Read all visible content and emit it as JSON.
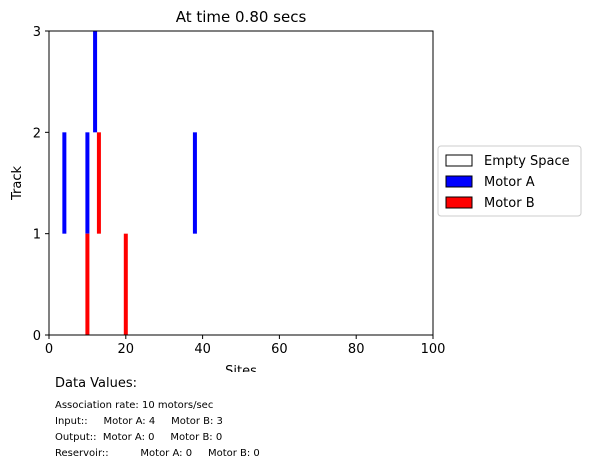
{
  "chart_data": {
    "type": "bar",
    "title": "At time 0.80 secs",
    "xlabel": "Sites",
    "ylabel": "Track",
    "xlim": [
      0,
      100
    ],
    "ylim": [
      0,
      3
    ],
    "x_ticks": [
      0,
      20,
      40,
      60,
      80,
      100
    ],
    "y_ticks": [
      0,
      1,
      2,
      3
    ],
    "grid": false,
    "legend_position": "outside-right",
    "legend": [
      {
        "label": "Empty Space",
        "color": "#ffffff"
      },
      {
        "label": "Motor A",
        "color": "#0000ff"
      },
      {
        "label": "Motor B",
        "color": "#ff0000"
      }
    ],
    "series": [
      {
        "name": "Motor A",
        "color": "#0000ff",
        "segments": [
          {
            "site": 4,
            "track_from": 1,
            "track_to": 2
          },
          {
            "site": 10,
            "track_from": 1,
            "track_to": 2
          },
          {
            "site": 12,
            "track_from": 2,
            "track_to": 3
          },
          {
            "site": 38,
            "track_from": 1,
            "track_to": 2
          }
        ]
      },
      {
        "name": "Motor B",
        "color": "#ff0000",
        "segments": [
          {
            "site": 10,
            "track_from": 0,
            "track_to": 1
          },
          {
            "site": 13,
            "track_from": 1,
            "track_to": 2
          },
          {
            "site": 20,
            "track_from": 0,
            "track_to": 1
          }
        ]
      }
    ]
  },
  "info": {
    "title": "Data Values:",
    "lines": [
      "Association rate: 10 motors/sec",
      "Input::     Motor A: 4     Motor B: 3",
      "Output::  Motor A: 0     Motor B: 0",
      "Reservoir::          Motor A: 0     Motor B: 0"
    ]
  }
}
